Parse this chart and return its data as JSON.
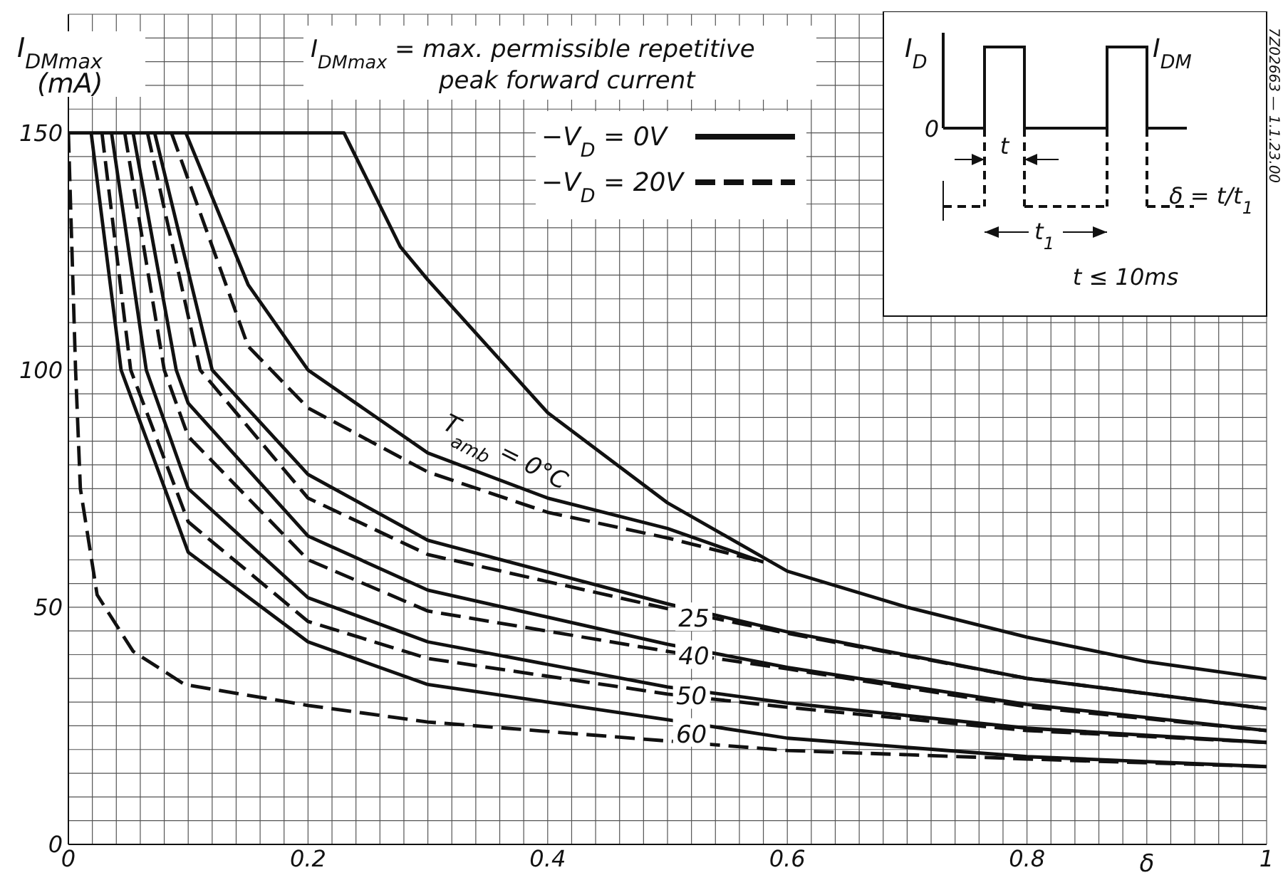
{
  "chart_data": {
    "type": "line",
    "title": "I$_{DMmax}$ = max. permissible repetitive peak forward current",
    "ylabel": "I$_{DMmax}$ (mA)",
    "xlabel": "δ",
    "xlim": [
      0,
      1
    ],
    "xticks": [
      0,
      0.2,
      0.4,
      0.6,
      0.8,
      1
    ],
    "ylim": [
      0,
      175
    ],
    "yticks": [
      0,
      50,
      100,
      150
    ],
    "grid": true,
    "legend": "top right",
    "marker": "none",
    "series": [
      {
        "color": "#111111",
        "line_style": "solid",
        "x": [
          0,
          0.23,
          0.277,
          0.3,
          0.4,
          0.5,
          0.6,
          0.7,
          0.8,
          0.9,
          1
        ],
        "values": [
          150,
          150,
          126,
          119,
          91,
          72,
          57.6,
          50,
          43.7,
          38.5,
          35
        ]
      },
      {
        "name": "−V$_{D}$ = 0V",
        "color": "#111111",
        "line_style": "solid",
        "x": [
          0.098,
          0.15,
          0.2,
          0.3,
          0.4,
          0.5,
          0.58
        ],
        "values": [
          150,
          118,
          100,
          82.5,
          73,
          66.6,
          59.5
        ]
      },
      {
        "name": "−V$_{D}$ = 20V",
        "color": "#111111",
        "line_style": "dashed",
        "x": [
          0.086,
          0.15,
          0.2,
          0.3,
          0.4,
          0.5,
          0.58
        ],
        "values": [
          150,
          105,
          92,
          78.5,
          70,
          64.6,
          59.5
        ]
      },
      {
        "color": "#111111",
        "line_style": "solid",
        "x": [
          0.072,
          0.12,
          0.2,
          0.3,
          0.5,
          0.6,
          0.8,
          1
        ],
        "values": [
          150,
          100,
          78,
          64.1,
          50.7,
          44.8,
          35,
          28.6
        ]
      },
      {
        "color": "#111111",
        "line_style": "dashed",
        "x": [
          0.066,
          0.11,
          0.2,
          0.3,
          0.5,
          0.6,
          0.8,
          1
        ],
        "values": [
          150,
          100,
          73,
          61.1,
          49.7,
          44.5,
          35,
          28.6
        ]
      },
      {
        "color": "#111111",
        "line_style": "solid",
        "x": [
          0.054,
          0.09,
          0.1,
          0.2,
          0.3,
          0.5,
          0.6,
          0.8,
          1
        ],
        "values": [
          150,
          100,
          93,
          65,
          53.6,
          42.2,
          37.3,
          29.5,
          24
        ]
      },
      {
        "color": "#111111",
        "line_style": "dashed",
        "x": [
          0.047,
          0.08,
          0.1,
          0.2,
          0.3,
          0.5,
          0.6,
          0.8,
          1
        ],
        "values": [
          150,
          100,
          86,
          60,
          49.2,
          40.7,
          37,
          29,
          24
        ]
      },
      {
        "color": "#111111",
        "line_style": "solid",
        "x": [
          0.036,
          0.065,
          0.1,
          0.2,
          0.3,
          0.5,
          0.6,
          0.8,
          1
        ],
        "values": [
          150,
          100,
          75,
          52,
          42.7,
          33.2,
          29.8,
          24.5,
          21.5
        ]
      },
      {
        "color": "#111111",
        "line_style": "dashed",
        "x": [
          0.028,
          0.052,
          0.1,
          0.2,
          0.3,
          0.5,
          0.6,
          0.8,
          1
        ],
        "values": [
          150,
          100,
          68,
          47,
          39.2,
          31.7,
          28.9,
          24,
          21.5
        ]
      },
      {
        "color": "#111111",
        "line_style": "solid",
        "x": [
          0.019,
          0.044,
          0.1,
          0.2,
          0.3,
          0.5,
          0.6,
          0.8,
          1
        ],
        "values": [
          150,
          100,
          61.6,
          42.7,
          33.7,
          26.3,
          22.4,
          18.5,
          16.4
        ]
      },
      {
        "color": "#111111",
        "line_style": "dashed",
        "x": [
          0,
          0.006,
          0.01,
          0.024,
          0.054,
          0.097,
          0.2,
          0.3,
          0.5,
          0.6,
          0.8,
          1
        ],
        "values": [
          150,
          100,
          75,
          52.6,
          40.7,
          33.7,
          29.3,
          25.8,
          21.8,
          19.8,
          18,
          16.4
        ]
      }
    ],
    "annotations": [
      {
        "text": "T$_{amb}$ = 0°C",
        "x": 0.357,
        "y": 77.6
      },
      {
        "text": "25",
        "x": 0.522,
        "y": 47.7
      },
      {
        "text": "40",
        "x": 0.522,
        "y": 39.7
      },
      {
        "text": "50",
        "x": 0.52,
        "y": 31.3
      },
      {
        "text": "60",
        "x": 0.52,
        "y": 23.3
      },
      "I$_{D}$",
      "I$_{DM}$",
      "0",
      "t",
      "t$_{1}$",
      "δ = t/t$_{1}$",
      "t ≤ 10ms",
      "7Z02663 — 1.1.23.00"
    ]
  }
}
